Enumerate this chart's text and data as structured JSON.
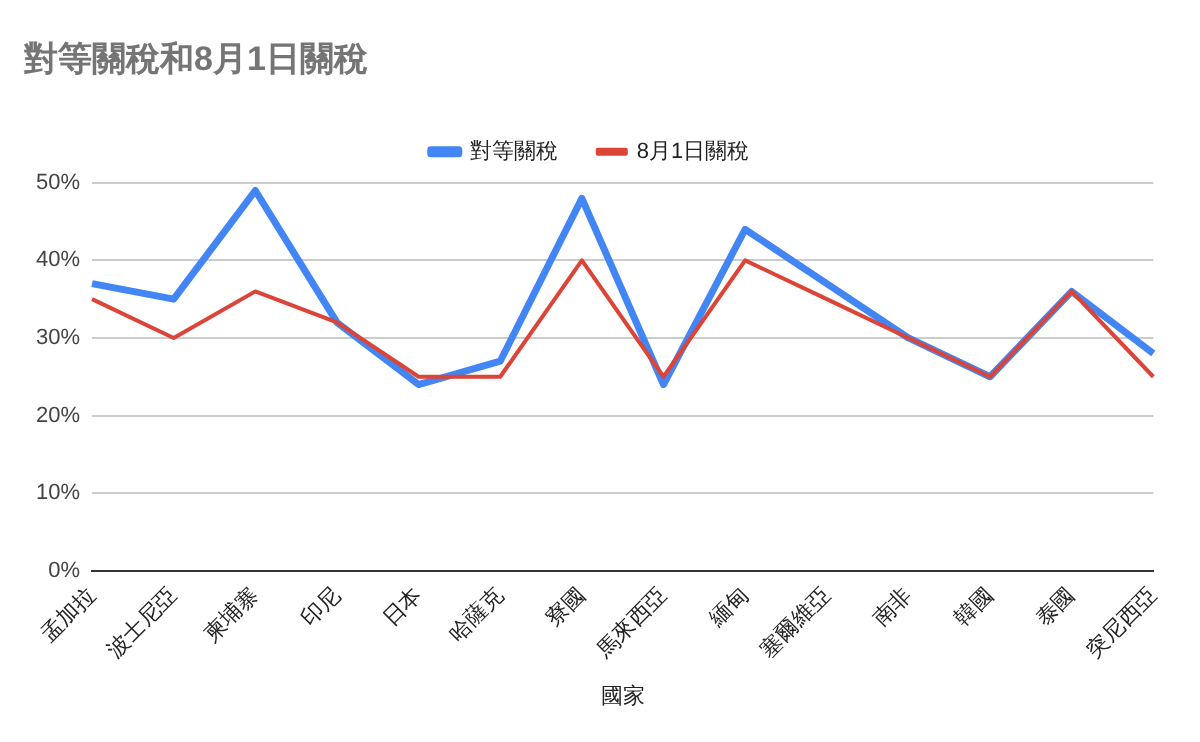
{
  "chart_data": {
    "type": "line",
    "title": "對等關稅和8月1日關稅",
    "xlabel": "國家",
    "categories": [
      "孟加拉",
      "波士尼亞",
      "柬埔寨",
      "印尼",
      "日本",
      "哈薩克",
      "寮國",
      "馬來西亞",
      "緬甸",
      "塞爾維亞",
      "南非",
      "韓國",
      "泰國",
      "突尼西亞"
    ],
    "series": [
      {
        "name": "對等關稅",
        "color": "#4285f4",
        "values": [
          37,
          35,
          49,
          32,
          24,
          27,
          48,
          24,
          44,
          37,
          30,
          25,
          36,
          28
        ]
      },
      {
        "name": "8月1日關稅",
        "color": "#db4437",
        "values": [
          35,
          30,
          36,
          32,
          25,
          25,
          40,
          25,
          40,
          35,
          30,
          25,
          36,
          25
        ]
      }
    ],
    "ylim": [
      0,
      50
    ],
    "yticks": [
      {
        "value": 0,
        "label": "0%"
      },
      {
        "value": 10,
        "label": "10%"
      },
      {
        "value": 20,
        "label": "20%"
      },
      {
        "value": 30,
        "label": "30%"
      },
      {
        "value": 40,
        "label": "40%"
      },
      {
        "value": 50,
        "label": "50%"
      }
    ],
    "grid": "y",
    "legend": "top",
    "marker": "none",
    "line_style": "solid"
  }
}
